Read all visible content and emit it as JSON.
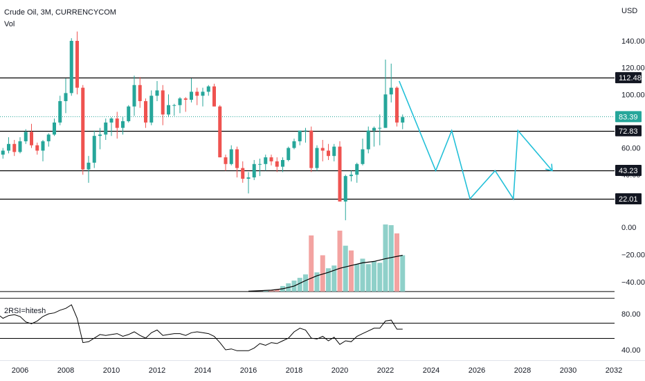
{
  "header": {
    "symbol": "Crude Oil, 3M, CURRENCYCOM",
    "vol_label": "Vol",
    "rsi_label": "2RSI=hitesh"
  },
  "colors": {
    "up": "#26a69a",
    "down": "#ef5350",
    "projection": "#22c0d8",
    "level_tag": "#131722",
    "last_price_tag": "#26a69a"
  },
  "chart_data": [
    {
      "type": "candlestick",
      "title": "Crude Oil, 3M, CURRENCYCOM",
      "currency": "USD",
      "y_ticks": [
        "140.00",
        "120.00",
        "100.00",
        "60.00",
        "40.00"
      ],
      "ylim": [
        13,
        152
      ],
      "x_ticks": [
        "2006",
        "2008",
        "2010",
        "2012",
        "2014",
        "2016",
        "2018",
        "2020",
        "2022",
        "2024",
        "2026",
        "2028",
        "2030",
        "2032"
      ],
      "candles": [
        [
          2005.0,
          50,
          57,
          47,
          55
        ],
        [
          2005.25,
          55,
          60,
          52,
          58
        ],
        [
          2005.5,
          58,
          68,
          56,
          63
        ],
        [
          2005.75,
          63,
          66,
          54,
          57
        ],
        [
          2006.0,
          57,
          68,
          56,
          65
        ],
        [
          2006.25,
          65,
          74,
          63,
          72
        ],
        [
          2006.5,
          72,
          78,
          60,
          62
        ],
        [
          2006.75,
          62,
          64,
          55,
          58
        ],
        [
          2007.0,
          58,
          66,
          50,
          65
        ],
        [
          2007.25,
          65,
          71,
          61,
          70
        ],
        [
          2007.5,
          70,
          82,
          69,
          79
        ],
        [
          2007.75,
          79,
          99,
          77,
          95
        ],
        [
          2008.0,
          95,
          112,
          86,
          101
        ],
        [
          2008.25,
          101,
          142,
          99,
          140
        ],
        [
          2008.5,
          140,
          147,
          100,
          105
        ],
        [
          2008.75,
          105,
          107,
          40,
          44
        ],
        [
          2009.0,
          44,
          54,
          34,
          49
        ],
        [
          2009.25,
          49,
          73,
          45,
          69
        ],
        [
          2009.5,
          69,
          75,
          59,
          70
        ],
        [
          2009.75,
          70,
          82,
          66,
          79
        ],
        [
          2010.0,
          79,
          83,
          69,
          82
        ],
        [
          2010.25,
          82,
          87,
          67,
          75
        ],
        [
          2010.5,
          75,
          83,
          70,
          80
        ],
        [
          2010.75,
          80,
          92,
          79,
          91
        ],
        [
          2011.0,
          91,
          114,
          84,
          107
        ],
        [
          2011.25,
          107,
          113,
          90,
          95
        ],
        [
          2011.5,
          95,
          97,
          75,
          79
        ],
        [
          2011.75,
          79,
          103,
          77,
          99
        ],
        [
          2012.0,
          99,
          110,
          95,
          103
        ],
        [
          2012.25,
          103,
          107,
          77,
          85
        ],
        [
          2012.5,
          85,
          100,
          83,
          92
        ],
        [
          2012.75,
          92,
          93,
          84,
          92
        ],
        [
          2013.0,
          92,
          98,
          86,
          97
        ],
        [
          2013.25,
          97,
          98,
          87,
          96
        ],
        [
          2013.5,
          96,
          112,
          94,
          102
        ],
        [
          2013.75,
          102,
          105,
          92,
          99
        ],
        [
          2014.0,
          99,
          105,
          91,
          102
        ],
        [
          2014.25,
          102,
          107,
          99,
          106
        ],
        [
          2014.5,
          106,
          108,
          91,
          91
        ],
        [
          2014.75,
          91,
          92,
          53,
          53
        ],
        [
          2015.0,
          53,
          55,
          43,
          48
        ],
        [
          2015.25,
          48,
          62,
          47,
          59
        ],
        [
          2015.5,
          59,
          61,
          38,
          45
        ],
        [
          2015.75,
          45,
          50,
          34,
          37
        ],
        [
          2016.0,
          37,
          42,
          26,
          38
        ],
        [
          2016.25,
          38,
          51,
          36,
          48
        ],
        [
          2016.5,
          48,
          52,
          39,
          48
        ],
        [
          2016.75,
          48,
          55,
          43,
          53
        ],
        [
          2017.0,
          53,
          55,
          47,
          50
        ],
        [
          2017.25,
          50,
          53,
          42,
          46
        ],
        [
          2017.5,
          46,
          53,
          42,
          51
        ],
        [
          2017.75,
          51,
          61,
          50,
          60
        ],
        [
          2018.0,
          60,
          67,
          59,
          65
        ],
        [
          2018.25,
          65,
          73,
          62,
          73
        ],
        [
          2018.5,
          73,
          75,
          64,
          73
        ],
        [
          2018.75,
          73,
          76,
          42,
          45
        ],
        [
          2019.0,
          45,
          62,
          43,
          60
        ],
        [
          2019.25,
          60,
          66,
          50,
          58
        ],
        [
          2019.5,
          58,
          63,
          51,
          54
        ],
        [
          2019.75,
          54,
          63,
          50,
          61
        ],
        [
          2020.0,
          61,
          65,
          20,
          20
        ],
        [
          2020.25,
          20,
          40,
          6,
          39
        ],
        [
          2020.5,
          39,
          43,
          35,
          40
        ],
        [
          2020.75,
          40,
          49,
          34,
          48
        ],
        [
          2021.0,
          48,
          67,
          47,
          59
        ],
        [
          2021.25,
          59,
          76,
          56,
          73
        ],
        [
          2021.5,
          73,
          76,
          61,
          75
        ],
        [
          2021.75,
          75,
          85,
          62,
          75
        ],
        [
          2022.0,
          75,
          126,
          75,
          100
        ],
        [
          2022.25,
          100,
          123,
          94,
          105
        ],
        [
          2022.5,
          105,
          106,
          76,
          79
        ],
        [
          2022.75,
          79,
          85,
          74,
          83
        ]
      ],
      "levels": [
        112.48,
        72.83,
        43.23,
        22.01
      ],
      "last_price": 83.39,
      "level_labels": [
        "112.48",
        "72.83",
        "43.23",
        "22.01"
      ],
      "last_price_label": "83.39",
      "projection_path": [
        [
          2022.6,
          110
        ],
        [
          2024.2,
          43
        ],
        [
          2024.9,
          73
        ],
        [
          2025.7,
          22
        ],
        [
          2026.8,
          43
        ],
        [
          2027.6,
          22
        ],
        [
          2027.8,
          73
        ],
        [
          2029.3,
          43
        ]
      ]
    },
    {
      "type": "bar",
      "name": "Vol",
      "y_ticks": [
        "0.00",
        "−20.00",
        "−40.00"
      ],
      "ylim": [
        -47,
        2
      ],
      "bars": [
        [
          2016.75,
          -46.5,
          "up"
        ],
        [
          2017.0,
          -46,
          "down"
        ],
        [
          2017.25,
          -45.5,
          "down"
        ],
        [
          2017.5,
          -43,
          "up"
        ],
        [
          2017.75,
          -41,
          "up"
        ],
        [
          2018.0,
          -39,
          "up"
        ],
        [
          2018.25,
          -37,
          "up"
        ],
        [
          2018.5,
          -34.5,
          "up"
        ],
        [
          2018.75,
          -6,
          "down"
        ],
        [
          2019.0,
          -33,
          "up"
        ],
        [
          2019.25,
          -20.5,
          "down"
        ],
        [
          2019.5,
          -30,
          "up"
        ],
        [
          2019.75,
          -28,
          "up"
        ],
        [
          2020.0,
          -2.5,
          "down"
        ],
        [
          2020.25,
          -13.5,
          "up"
        ],
        [
          2020.5,
          -17,
          "down"
        ],
        [
          2020.75,
          -27,
          "up"
        ],
        [
          2021.0,
          -23,
          "up"
        ],
        [
          2021.25,
          -27,
          "up"
        ],
        [
          2021.5,
          -25,
          "up"
        ],
        [
          2021.75,
          -26,
          "up"
        ],
        [
          2022.0,
          2,
          "up"
        ],
        [
          2022.25,
          1.5,
          "up"
        ],
        [
          2022.5,
          -4.5,
          "down"
        ],
        [
          2022.75,
          -20.5,
          "up"
        ]
      ],
      "ma_line": [
        [
          2016.0,
          -46.8
        ],
        [
          2017.0,
          -46
        ],
        [
          2017.5,
          -45
        ],
        [
          2018.0,
          -43
        ],
        [
          2018.5,
          -39
        ],
        [
          2019.0,
          -35.5
        ],
        [
          2019.5,
          -33
        ],
        [
          2020.0,
          -30
        ],
        [
          2020.5,
          -28
        ],
        [
          2021.0,
          -26
        ],
        [
          2021.5,
          -25
        ],
        [
          2022.0,
          -23
        ],
        [
          2022.75,
          -20.5
        ]
      ],
      "baseline": -47
    },
    {
      "type": "line",
      "name": "2RSI=hitesh",
      "y_ticks": [
        "80.00",
        "40.00"
      ],
      "ylim": [
        37,
        93
      ],
      "hlines": [
        70,
        53
      ],
      "x": [
        2005.0,
        2005.25,
        2005.5,
        2005.75,
        2006.0,
        2006.25,
        2006.5,
        2006.75,
        2007.0,
        2007.25,
        2007.5,
        2007.75,
        2008.0,
        2008.25,
        2008.5,
        2008.75,
        2009.0,
        2009.25,
        2009.5,
        2009.75,
        2010.0,
        2010.25,
        2010.5,
        2010.75,
        2011.0,
        2011.25,
        2011.5,
        2011.75,
        2012.0,
        2012.25,
        2012.5,
        2012.75,
        2013.0,
        2013.25,
        2013.5,
        2013.75,
        2014.0,
        2014.25,
        2014.5,
        2014.75,
        2015.0,
        2015.25,
        2015.5,
        2015.75,
        2016.0,
        2016.25,
        2016.5,
        2016.75,
        2017.0,
        2017.25,
        2017.5,
        2017.75,
        2018.0,
        2018.25,
        2018.5,
        2018.75,
        2019.0,
        2019.25,
        2019.5,
        2019.75,
        2020.0,
        2020.25,
        2020.5,
        2020.75,
        2021.0,
        2021.25,
        2021.5,
        2021.75,
        2022.0,
        2022.25,
        2022.5,
        2022.75
      ],
      "y": [
        80,
        75,
        78,
        79,
        77,
        71,
        69,
        72,
        77,
        80,
        81,
        84,
        86,
        90,
        75,
        48,
        49,
        53,
        57,
        56,
        57,
        58,
        55,
        57,
        60,
        56,
        53,
        59,
        62,
        56,
        57,
        58,
        58,
        56,
        59,
        60,
        59,
        58,
        55,
        48,
        40,
        41,
        39,
        39,
        39,
        42,
        47,
        45,
        48,
        47,
        50,
        53,
        60,
        64,
        62,
        53,
        52,
        55,
        50,
        54,
        46,
        50,
        49,
        55,
        58,
        61,
        64,
        64,
        72,
        73,
        63,
        63
      ]
    }
  ]
}
